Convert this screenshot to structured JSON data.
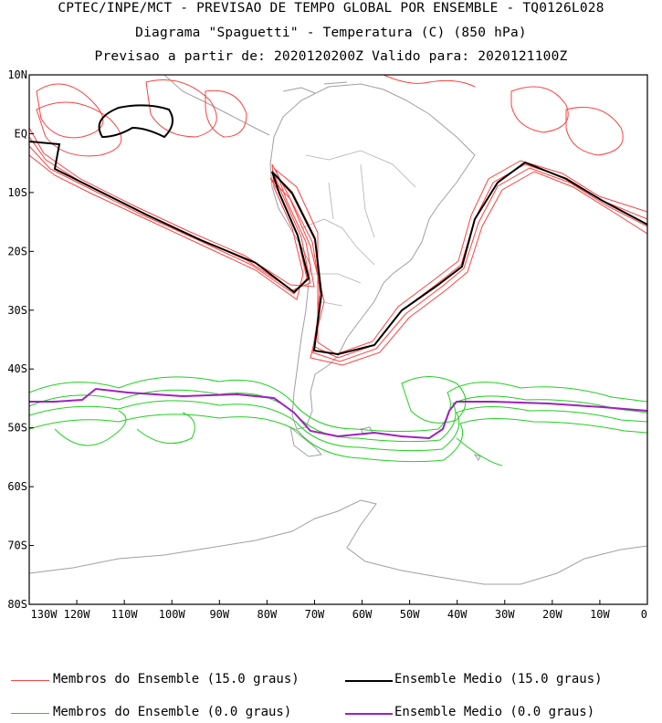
{
  "header": {
    "line1": "CPTEC/INPE/MCT - PREVISAO DE TEMPO GLOBAL POR ENSEMBLE - TQ0126L028",
    "line2": "Diagrama \"Spaguetti\" - Temperatura (C) (850 hPa)",
    "line3": "Previsao a partir de: 2020120200Z  Valido para: 2020121100Z"
  },
  "map": {
    "lon_labels": [
      "130W",
      "120W",
      "110W",
      "100W",
      "90W",
      "80W",
      "70W",
      "60W",
      "50W",
      "40W",
      "30W",
      "20W",
      "10W",
      "0"
    ],
    "lat_labels": [
      "10N",
      "EQ",
      "10S",
      "20S",
      "30S",
      "40S",
      "50S",
      "60S",
      "70S",
      "80S"
    ],
    "lon_range": [
      -130,
      0
    ],
    "lat_range": [
      -80,
      10
    ],
    "colors": {
      "member_15": "#ff4040",
      "mean_15": "#000000",
      "member_0": "#20d020",
      "mean_0": "#a020c0",
      "coast": "#a0a0a0"
    }
  },
  "legend": {
    "items": [
      {
        "label": "Membros do Ensemble (15.0 graus)",
        "color": "#ff4040"
      },
      {
        "label": "Ensemble Medio (15.0 graus)",
        "color": "#000000"
      },
      {
        "label": "Membros do Ensemble (0.0 graus)",
        "color": "#20d020"
      },
      {
        "label": "Ensemble Medio (0.0 graus)",
        "color": "#a020c0"
      }
    ]
  }
}
